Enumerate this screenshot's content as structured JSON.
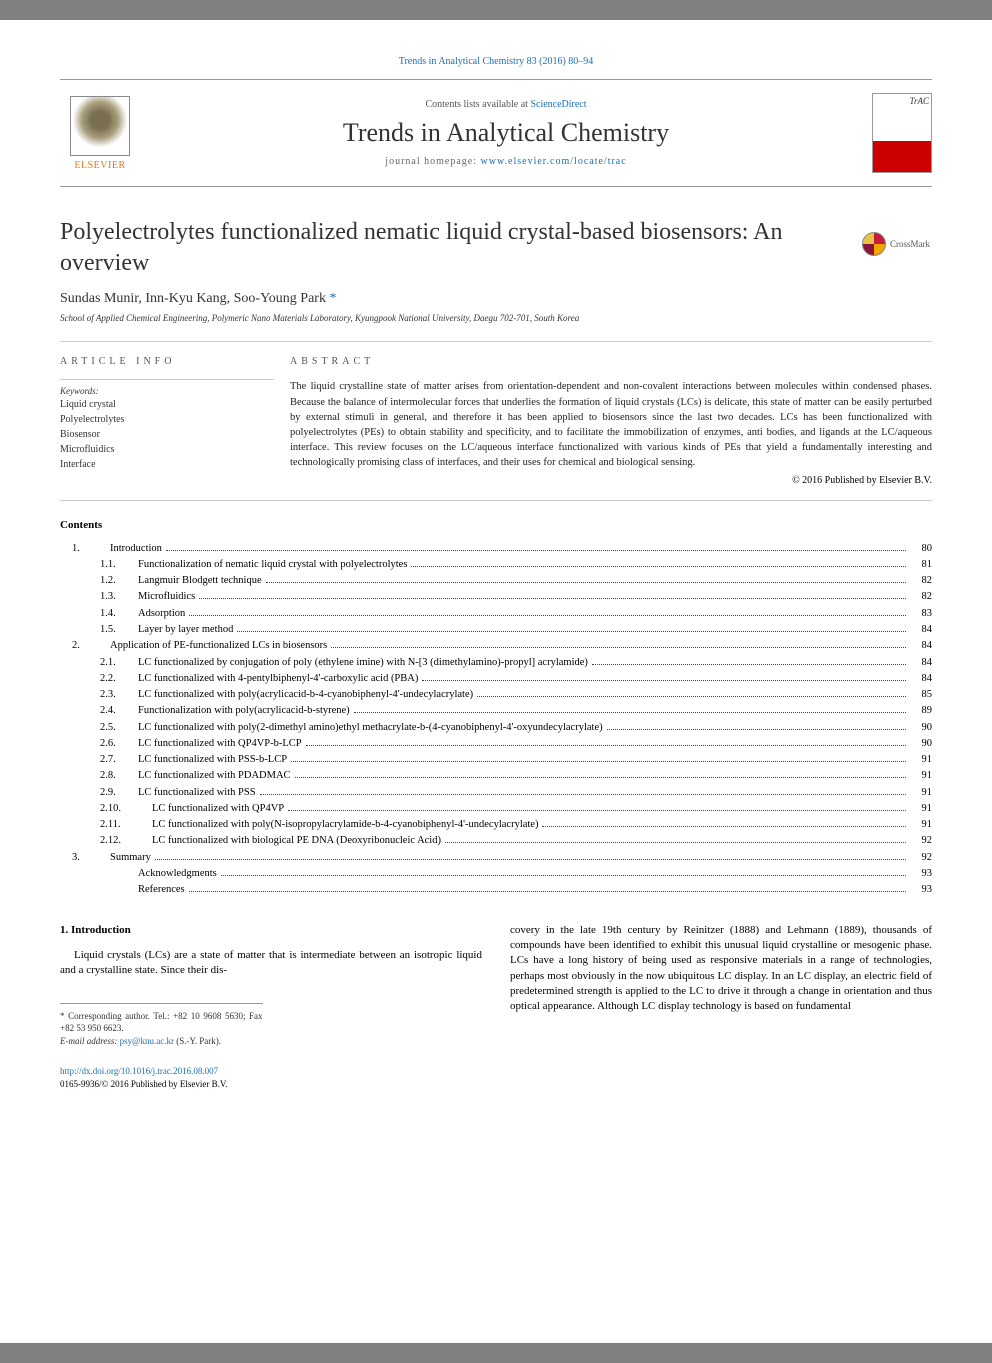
{
  "citation": "Trends in Analytical Chemistry 83 (2016) 80–94",
  "masthead": {
    "publisher": "ELSEVIER",
    "contents_prefix": "Contents lists available at ",
    "contents_link": "ScienceDirect",
    "journal_title": "Trends in Analytical Chemistry",
    "homepage_prefix": "journal homepage: ",
    "homepage_url": "www.elsevier.com/locate/trac",
    "cover_label": "TrAC"
  },
  "article": {
    "title": "Polyelectrolytes functionalized nematic liquid crystal-based biosensors: An overview",
    "authors_plain": "Sundas Munir, Inn-Kyu Kang, Soo-Young Park",
    "corresponding_marker": " *",
    "affiliation": "School of Applied Chemical Engineering, Polymeric Nano Materials Laboratory, Kyungpook National University, Daegu 702-701, South Korea",
    "crossmark": "CrossMark"
  },
  "labels": {
    "article_info": "ARTICLE INFO",
    "abstract": "ABSTRACT",
    "keywords": "Keywords:",
    "contents": "Contents"
  },
  "keywords": [
    "Liquid crystal",
    "Polyelectrolytes",
    "Biosensor",
    "Microfluidics",
    "Interface"
  ],
  "abstract": "The liquid crystalline state of matter arises from orientation-dependent and non-covalent interactions between molecules within condensed phases. Because the balance of intermolecular forces that underlies the formation of liquid crystals (LCs) is delicate, this state of matter can be easily perturbed by external stimuli in general, and therefore it has been applied to biosensors since the last two decades. LCs has been functionalized with polyelectrolytes (PEs) to obtain stability and specificity, and to facilitate the immobilization of enzymes, anti bodies, and ligands at the LC/aqueous interface. This review focuses on the LC/aqueous interface functionalized with various kinds of PEs that yield a fundamentally interesting and technologically promising class of interfaces, and their uses for chemical and biological sensing.",
  "copyright": "© 2016 Published by Elsevier B.V.",
  "toc": [
    {
      "level": 1,
      "num": "1.",
      "title": "Introduction",
      "page": "80"
    },
    {
      "level": 2,
      "num": "1.1.",
      "title": "Functionalization of nematic liquid crystal with polyelectrolytes",
      "page": "81"
    },
    {
      "level": 2,
      "num": "1.2.",
      "title": "Langmuir Blodgett technique",
      "page": "82"
    },
    {
      "level": 2,
      "num": "1.3.",
      "title": "Microfluidics",
      "page": "82"
    },
    {
      "level": 2,
      "num": "1.4.",
      "title": "Adsorption",
      "page": "83"
    },
    {
      "level": 2,
      "num": "1.5.",
      "title": "Layer by layer method",
      "page": "84"
    },
    {
      "level": 1,
      "num": "2.",
      "title": "Application of PE-functionalized LCs in biosensors",
      "page": "84"
    },
    {
      "level": 2,
      "num": "2.1.",
      "title": "LC functionalized by conjugation of poly (ethylene imine) with N-[3 (dimethylamino)-propyl] acrylamide)",
      "page": "84"
    },
    {
      "level": 2,
      "num": "2.2.",
      "title": "LC functionalized with 4-pentylbiphenyl-4'-carboxylic acid (PBA)",
      "page": "84"
    },
    {
      "level": 2,
      "num": "2.3.",
      "title": "LC functionalized with poly(acrylicacid-b-4-cyanobiphenyl-4'-undecylacrylate)",
      "page": "85"
    },
    {
      "level": 2,
      "num": "2.4.",
      "title": "Functionalization with poly(acrylicacid-b-styrene)",
      "page": "89"
    },
    {
      "level": 2,
      "num": "2.5.",
      "title": "LC functionalized with poly(2-dimethyl amino)ethyl methacrylate-b-(4-cyanobiphenyl-4'-oxyundecylacrylate)",
      "page": "90"
    },
    {
      "level": 2,
      "num": "2.6.",
      "title": "LC functionalized with QP4VP-b-LCP",
      "page": "90"
    },
    {
      "level": 2,
      "num": "2.7.",
      "title": "LC functionalized with PSS-b-LCP",
      "page": "91"
    },
    {
      "level": 2,
      "num": "2.8.",
      "title": "LC functionalized with PDADMAC",
      "page": "91"
    },
    {
      "level": 2,
      "num": "2.9.",
      "title": "LC functionalized with PSS",
      "page": "91"
    },
    {
      "level": 3,
      "num": "2.10.",
      "title": "LC functionalized with QP4VP",
      "page": "91"
    },
    {
      "level": 3,
      "num": "2.11.",
      "title": "LC functionalized with poly(N-isopropylacrylamide-b-4-cyanobiphenyl-4'-undecylacrylate)",
      "page": "91"
    },
    {
      "level": 3,
      "num": "2.12.",
      "title": "LC functionalized with biological PE DNA (Deoxyribonucleic Acid)",
      "page": "92"
    },
    {
      "level": 1,
      "num": "3.",
      "title": "Summary",
      "page": "92"
    },
    {
      "level": 0,
      "num": "",
      "title": "Acknowledgments",
      "page": "93"
    },
    {
      "level": 0,
      "num": "",
      "title": "References",
      "page": "93"
    }
  ],
  "body": {
    "heading": "1. Introduction",
    "col1": "Liquid crystals (LCs) are a state of matter that is intermediate between an isotropic liquid and a crystalline state. Since their dis-",
    "col2": "covery in the late 19th century by Reinitzer (1888) and Lehmann (1889), thousands of compounds have been identified to exhibit this unusual liquid crystalline or mesogenic phase. LCs have a long history of being used as responsive materials in a range of technologies, perhaps most obviously in the now ubiquitous LC display. In an LC display, an electric field of predetermined strength is applied to the LC to drive it through a change in orientation and thus optical appearance. Although LC display technology is based on fundamental"
  },
  "footnote": {
    "corresponding": "* Corresponding author. Tel.: +82 10 9608 5630; Fax +82 53 950 6623.",
    "email_label": "E-mail address:",
    "email": "psy@knu.ac.kr",
    "email_suffix": " (S.-Y. Park)."
  },
  "doi": {
    "url": "http://dx.doi.org/10.1016/j.trac.2016.08.007",
    "issn_line": "0165-9936/© 2016 Published by Elsevier B.V."
  },
  "colors": {
    "link": "#1a6fb5",
    "publisher": "#e67817",
    "text": "#333333",
    "rule": "#cccccc",
    "background": "#ffffff"
  }
}
